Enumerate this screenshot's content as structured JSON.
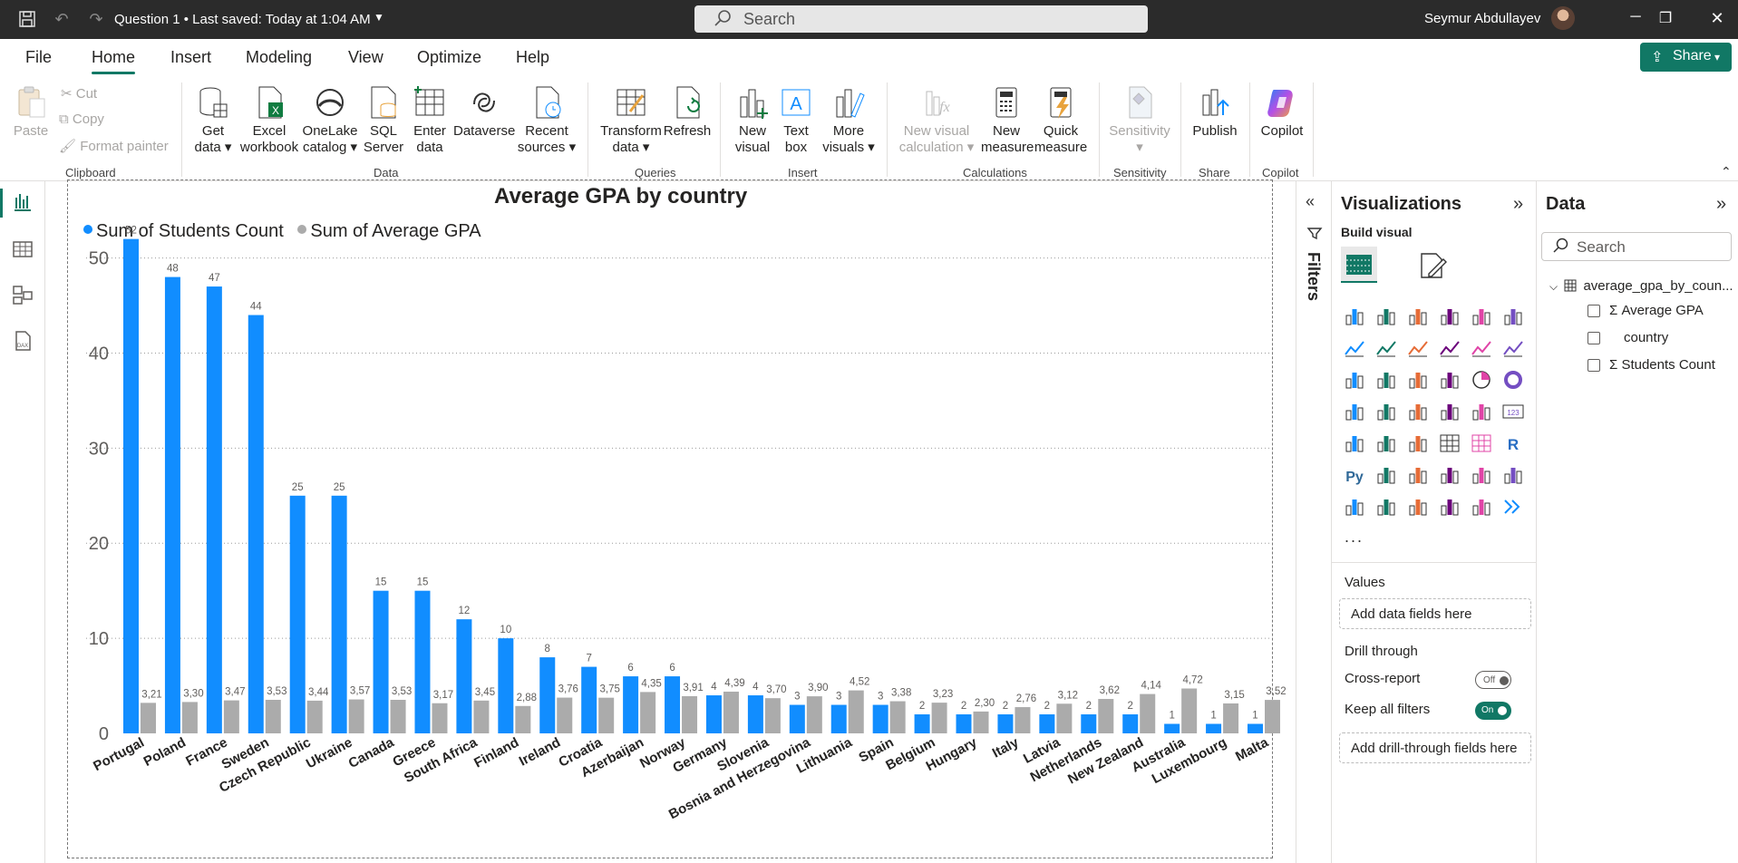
{
  "window": {
    "title": "Question 1 • Last saved: Today at 1:04 AM",
    "search_placeholder": "Search",
    "user_name": "Seymur Abdullayev"
  },
  "menu": {
    "items": [
      "File",
      "Home",
      "Insert",
      "Modeling",
      "View",
      "Optimize",
      "Help"
    ],
    "active": "Home",
    "share_label": "Share"
  },
  "ribbon": {
    "clipboard": {
      "paste": "Paste",
      "cut": "Cut",
      "copy": "Copy",
      "format_painter": "Format painter",
      "group": "Clipboard"
    },
    "data": {
      "get_data": [
        "Get",
        "data"
      ],
      "excel": [
        "Excel",
        "workbook"
      ],
      "onelake": [
        "OneLake",
        "catalog"
      ],
      "sql": [
        "SQL",
        "Server"
      ],
      "enter": [
        "Enter",
        "data"
      ],
      "dataverse": [
        "Dataverse"
      ],
      "recent": [
        "Recent",
        "sources"
      ],
      "group": "Data"
    },
    "queries": {
      "transform": [
        "Transform",
        "data"
      ],
      "refresh": [
        "Refresh"
      ],
      "group": "Queries"
    },
    "insert": {
      "new_visual": [
        "New",
        "visual"
      ],
      "text_box": [
        "Text",
        "box"
      ],
      "more_visuals": [
        "More",
        "visuals"
      ],
      "group": "Insert"
    },
    "calculations": {
      "new_visual_calc": [
        "New visual",
        "calculation"
      ],
      "new_measure": [
        "New",
        "measure"
      ],
      "quick_measure": [
        "Quick",
        "measure"
      ],
      "group": "Calculations"
    },
    "sensitivity": {
      "label": [
        "Sensitivity"
      ],
      "group": "Sensitivity"
    },
    "share": {
      "publish": [
        "Publish"
      ],
      "group": "Share"
    },
    "copilot": {
      "label": [
        "Copilot"
      ],
      "group": "Copilot"
    }
  },
  "chart_data": {
    "type": "bar",
    "title": "Average GPA by country",
    "categories": [
      "Portugal",
      "Poland",
      "France",
      "Sweden",
      "Czech Republic",
      "Ukraine",
      "Canada",
      "Greece",
      "South Africa",
      "Finland",
      "Ireland",
      "Croatia",
      "Azerbaijan",
      "Norway",
      "Germany",
      "Slovenia",
      "Bosnia and Herzegovina",
      "Lithuania",
      "Spain",
      "Belgium",
      "Hungary",
      "Italy",
      "Latvia",
      "Netherlands",
      "New Zealand",
      "Australia",
      "Luxembourg",
      "Malta"
    ],
    "series": [
      {
        "name": "Sum of Students Count",
        "color": "#118DFF",
        "values": [
          52,
          48,
          47,
          44,
          25,
          25,
          15,
          15,
          12,
          10,
          8,
          7,
          6,
          6,
          4,
          4,
          3,
          3,
          3,
          2,
          2,
          2,
          2,
          2,
          2,
          1,
          1,
          1
        ],
        "labels": [
          "52",
          "48",
          "47",
          "44",
          "25",
          "25",
          "15",
          "15",
          "12",
          "10",
          "8",
          "7",
          "6",
          "6",
          "4",
          "4",
          "3",
          "3",
          "3",
          "2",
          "2",
          "2",
          "2",
          "2",
          "2",
          "1",
          "1",
          "1"
        ]
      },
      {
        "name": "Sum of Average GPA",
        "color": "#ABABAB",
        "values": [
          3.21,
          3.3,
          3.47,
          3.53,
          3.44,
          3.57,
          3.53,
          3.17,
          3.45,
          2.88,
          3.76,
          3.75,
          4.35,
          3.91,
          4.39,
          3.7,
          3.9,
          4.52,
          3.38,
          3.23,
          2.3,
          2.76,
          3.12,
          3.62,
          4.14,
          4.72,
          3.15,
          3.52
        ],
        "labels": [
          "3,21",
          "3,30",
          "3,47",
          "3,53",
          "3,44",
          "3,57",
          "3,53",
          "3,17",
          "3,45",
          "2,88",
          "3,76",
          "3,75",
          "4,35",
          "3,91",
          "4,39",
          "3,70",
          "3,90",
          "4,52",
          "3,38",
          "3,23",
          "2,30",
          "2,76",
          "3,12",
          "3,62",
          "4,14",
          "4,72",
          "3,15",
          "3,52"
        ]
      }
    ],
    "yticks": [
      "0",
      "10",
      "20",
      "30",
      "40",
      "50"
    ],
    "ylim": [
      0,
      53.3
    ],
    "grid": "horizontal dotted",
    "legend_position": "top-left"
  },
  "filters": {
    "label": "Filters"
  },
  "visualizations": {
    "title": "Visualizations",
    "build_visual": "Build visual",
    "more": "...",
    "values_label": "Values",
    "values_placeholder": "Add data fields here",
    "drill_through": "Drill through",
    "cross_report": "Cross-report",
    "cross_report_state": "Off",
    "keep_all_filters": "Keep all filters",
    "keep_all_filters_state": "On",
    "drill_placeholder": "Add drill-through fields here"
  },
  "data_pane": {
    "title": "Data",
    "search_placeholder": "Search",
    "table": "average_gpa_by_coun...",
    "fields": [
      {
        "name": "Average GPA",
        "sigma": "Σ"
      },
      {
        "name": "country",
        "sigma": ""
      },
      {
        "name": "Students Count",
        "sigma": "Σ"
      }
    ]
  }
}
